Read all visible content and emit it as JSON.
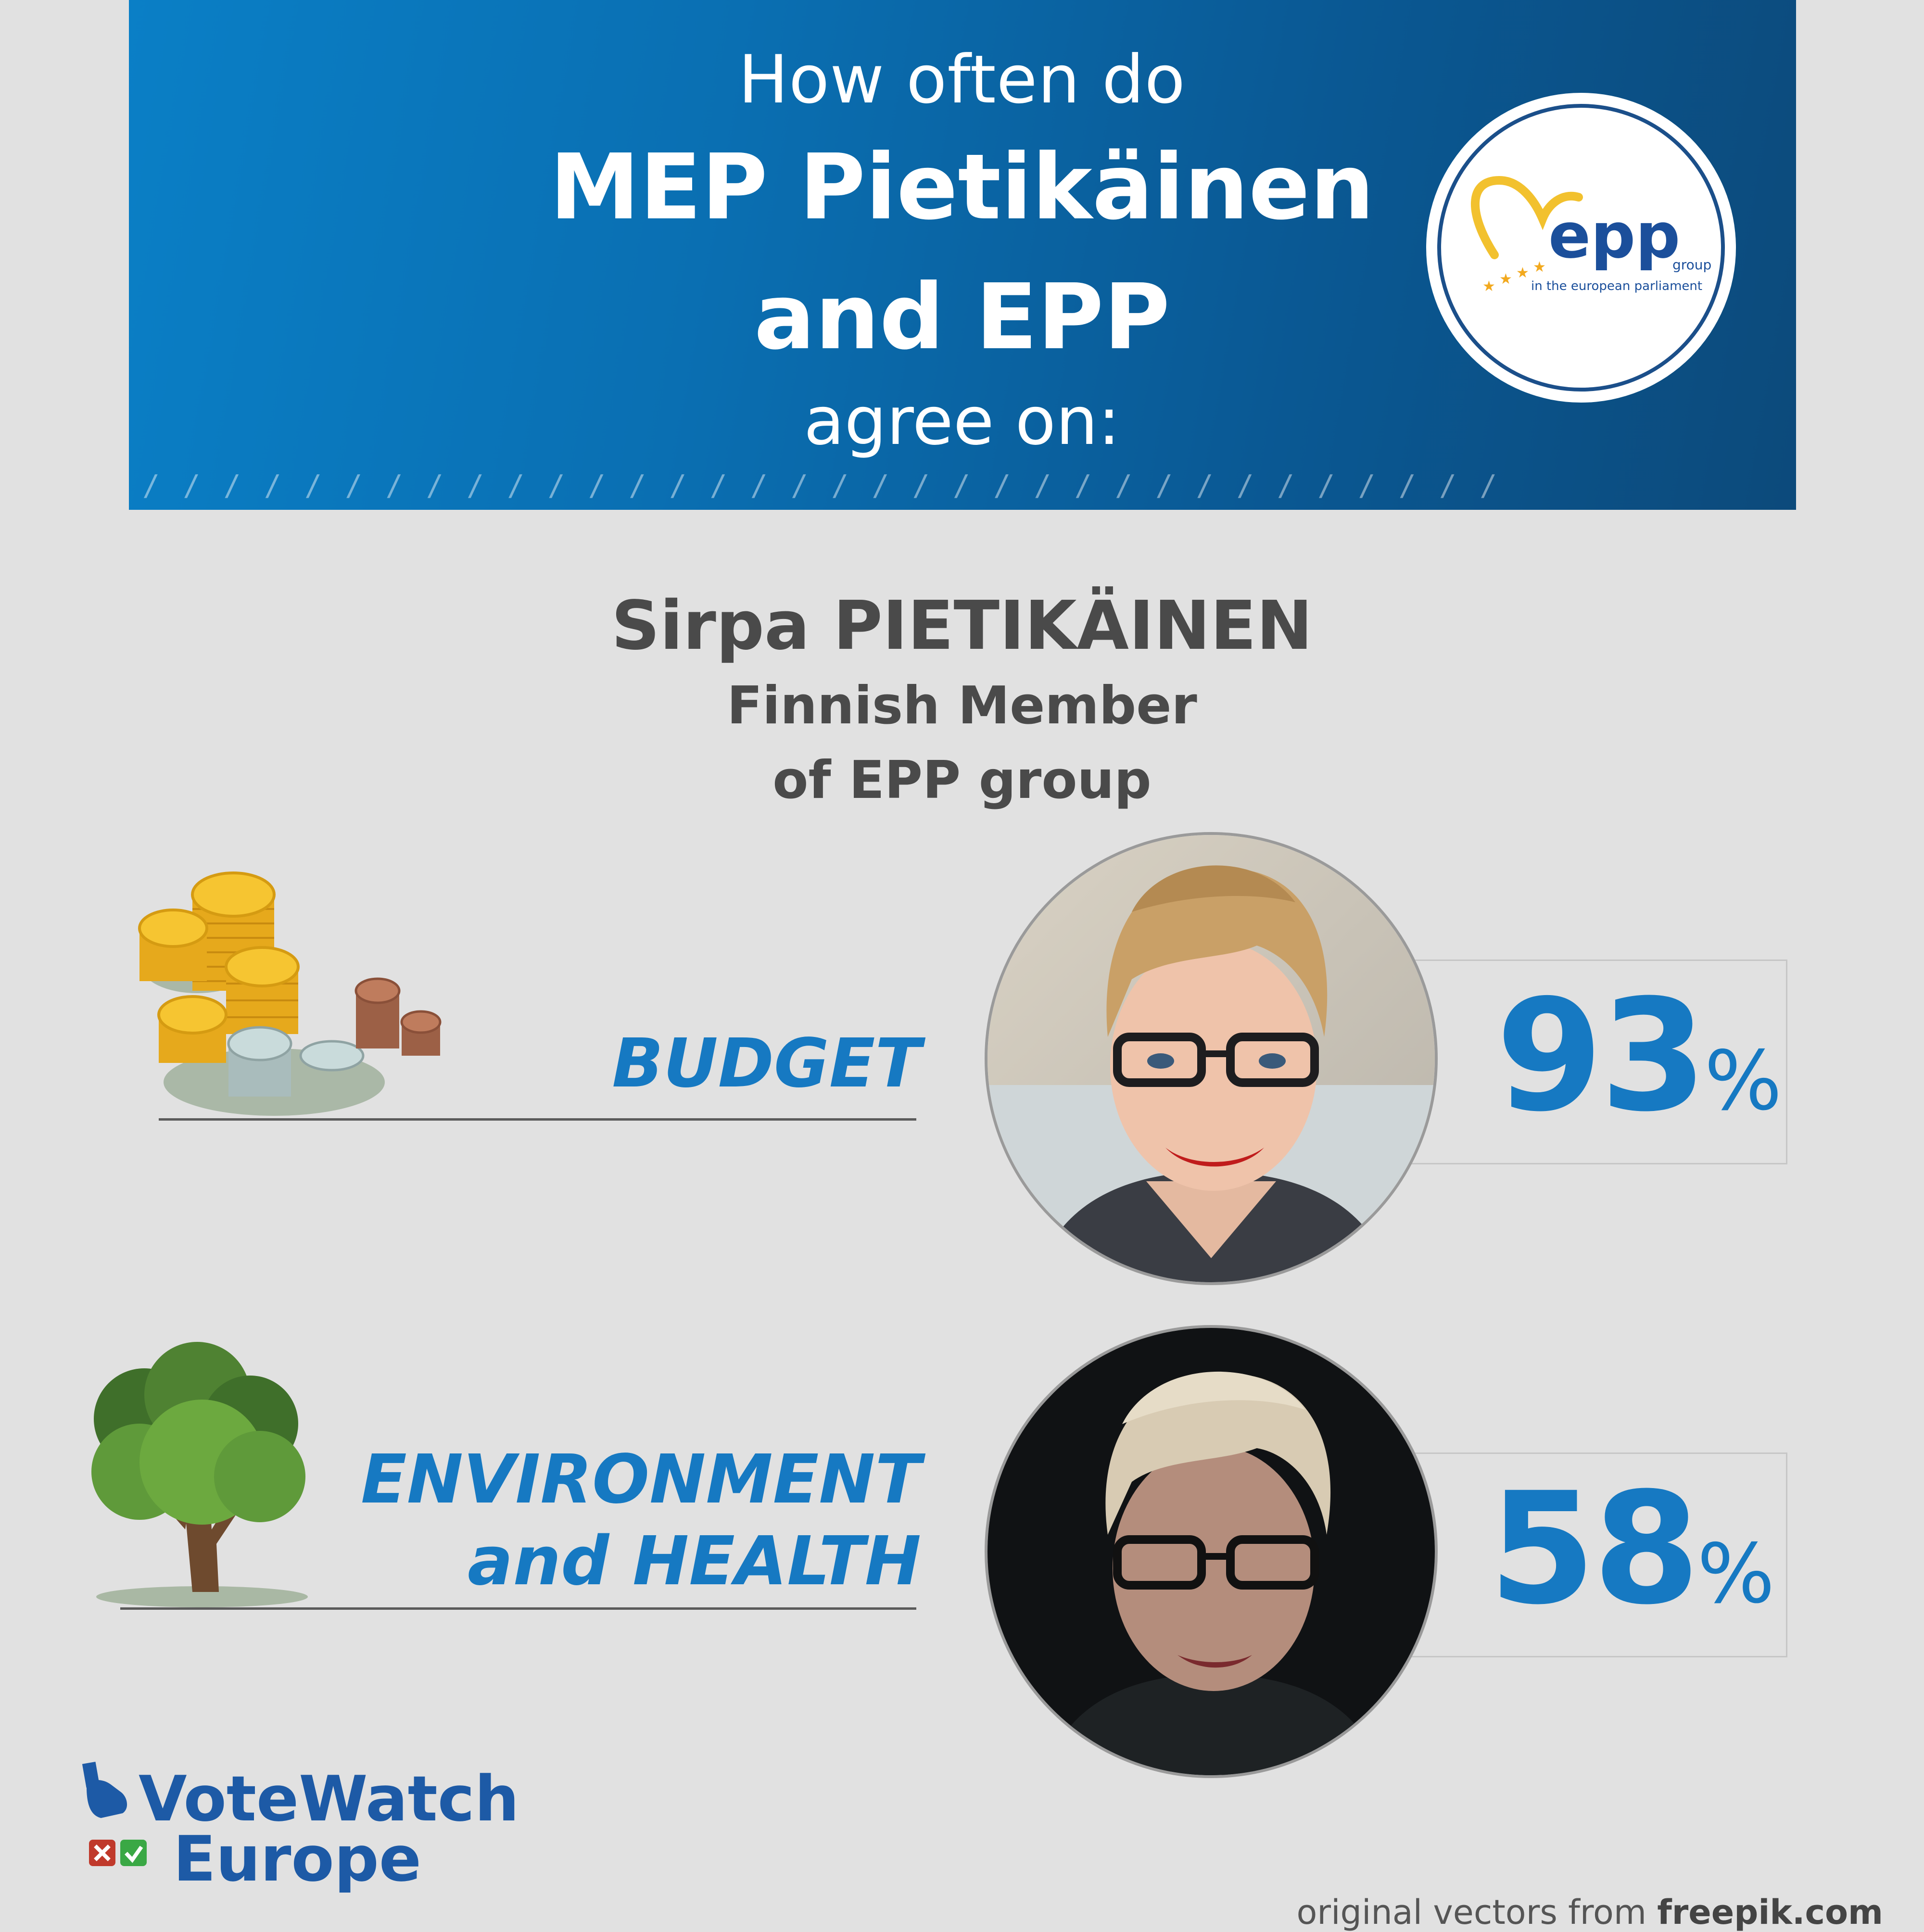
{
  "header": {
    "line1": "How often do",
    "line2": "MEP Pietikäinen",
    "line3": "and EPP",
    "line4": "agree on:",
    "slashes": "/ / / / / / / / / / / / / / / / / / / / / / / / / / / / / / / / / /"
  },
  "epp_logo": {
    "wordmark": "epp",
    "sub1": "group",
    "sub2": "in the european parliament"
  },
  "member": {
    "name": "Sirpa PIETIKÄINEN",
    "line2": "Finnish Member",
    "line3": "of EPP group"
  },
  "topics": [
    {
      "label_lines": [
        "BUDGET"
      ],
      "percent": "93",
      "percent_symbol": "%",
      "icon": "coins-icon"
    },
    {
      "label_lines": [
        "ENVIRONMENT",
        "and HEALTH"
      ],
      "percent": "58",
      "percent_symbol": "%",
      "icon": "tree-icon"
    }
  ],
  "footer": {
    "brand_line1": "VoteWatch",
    "brand_line2": "Europe",
    "credit_prefix": "original vectors from ",
    "credit_site": "freepik.com"
  },
  "colors": {
    "header_blue": "#0a6fb2",
    "accent_blue": "#1679c2",
    "background": "#e1e1e1",
    "text_gray": "#4a4a4a"
  }
}
